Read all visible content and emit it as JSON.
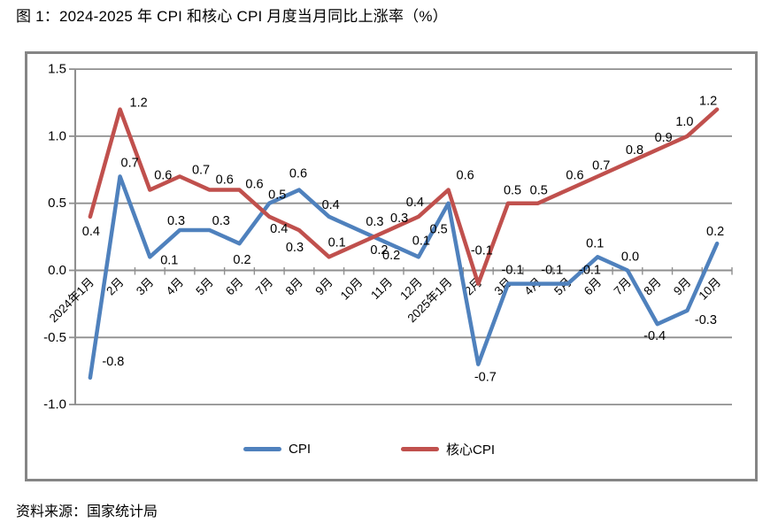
{
  "page": {
    "title": "图 1：2024-2025 年 CPI 和核心 CPI 月度当月同比上涨率（%）",
    "source_note": "资料来源：国家统计局"
  },
  "chart_data": {
    "type": "line",
    "title": "图 1：2024-2025 年 CPI 和核心 CPI 月度当月同比上涨率（%）",
    "xlabel": "",
    "ylabel": "",
    "ylim": [
      -1.0,
      1.5
    ],
    "yticks": [
      1.5,
      1.0,
      0.5,
      0.0,
      -0.5,
      -1.0
    ],
    "ytick_labels": [
      "1.5",
      "1.0",
      "0.5",
      "0.0",
      "-0.5",
      "-1.0"
    ],
    "grid": true,
    "legend_position": "bottom",
    "grid_color": "#8f8f8f",
    "axis_color": "#8f8f8f",
    "label_color": "#000000",
    "frame_border_color": "#858585",
    "categories": [
      "2024年1月",
      "2月",
      "3月",
      "4月",
      "5月",
      "6月",
      "7月",
      "8月",
      "9月",
      "10月",
      "11月",
      "12月",
      "2025年1月",
      "2月",
      "3月",
      "4月",
      "5月",
      "6月",
      "7月",
      "8月",
      "9月",
      "10月"
    ],
    "series": [
      {
        "name": "CPI",
        "color": "#4F81BD",
        "values": [
          -0.8,
          0.7,
          0.1,
          0.3,
          0.3,
          0.2,
          0.5,
          0.6,
          0.4,
          0.3,
          0.2,
          0.1,
          0.5,
          -0.7,
          -0.1,
          -0.1,
          -0.1,
          0.1,
          0.0,
          -0.4,
          -0.3,
          0.2
        ],
        "label_offsets": [
          [
            26,
            -18
          ],
          [
            11,
            -15
          ],
          [
            22,
            4
          ],
          [
            -4,
            -10
          ],
          [
            13,
            -10
          ],
          [
            3,
            19
          ],
          [
            9,
            -9
          ],
          [
            -1,
            -18
          ],
          [
            2,
            -13
          ],
          [
            18,
            -9
          ],
          [
            3,
            14
          ],
          [
            3,
            -18
          ],
          [
            -11,
            30
          ],
          [
            8,
            15
          ],
          [
            5,
            -15
          ],
          [
            16,
            -15
          ],
          [
            25,
            -15
          ],
          [
            -3,
            -15
          ],
          [
            3,
            -15
          ],
          [
            -3,
            14
          ],
          [
            21,
            11
          ],
          [
            -2,
            -13
          ]
        ]
      },
      {
        "name": "核心CPI",
        "color": "#C0504D",
        "values": [
          0.4,
          1.2,
          0.6,
          0.7,
          0.6,
          0.6,
          0.4,
          0.3,
          0.1,
          0.2,
          0.3,
          0.4,
          0.6,
          -0.1,
          0.5,
          0.5,
          0.6,
          0.7,
          0.8,
          0.9,
          1.0,
          1.2
        ],
        "label_offsets": [
          [
            1,
            17
          ],
          [
            21,
            -7
          ],
          [
            15,
            -16
          ],
          [
            24,
            -7
          ],
          [
            17,
            -11
          ],
          [
            17,
            -6
          ],
          [
            11,
            14
          ],
          [
            -5,
            20
          ],
          [
            9,
            -16
          ],
          [
            23,
            8
          ],
          [
            12,
            -13
          ],
          [
            -4,
            -16
          ],
          [
            19,
            -16
          ],
          [
            4,
            -37
          ],
          [
            5,
            -14
          ],
          [
            1,
            -14
          ],
          [
            8,
            -16
          ],
          [
            4,
            -12
          ],
          [
            8,
            -14
          ],
          [
            7,
            -13
          ],
          [
            -3,
            -16
          ],
          [
            -10,
            -9
          ]
        ]
      }
    ]
  }
}
